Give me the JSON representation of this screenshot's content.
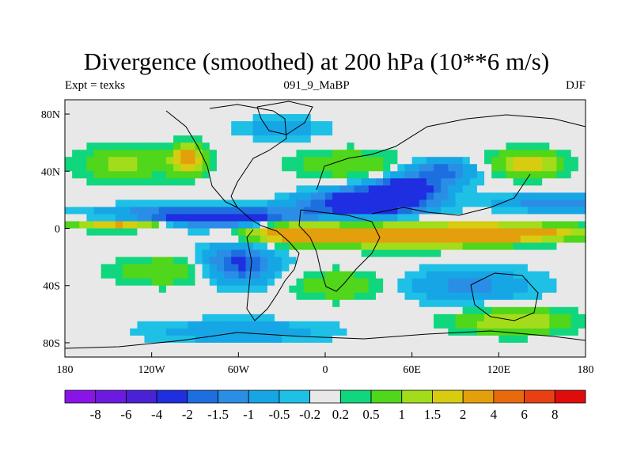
{
  "chart_data": {
    "type": "heatmap",
    "title": "Divergence (smoothed) at 200 hPa (10**6 m/s)",
    "left_subtitle": "Expt = texks",
    "center_subtitle": "091_9_MaBP",
    "right_subtitle": "DJF",
    "x_ticks": [
      {
        "value": -180,
        "label": "180"
      },
      {
        "value": -120,
        "label": "120W"
      },
      {
        "value": -60,
        "label": "60W"
      },
      {
        "value": 0,
        "label": "0"
      },
      {
        "value": 60,
        "label": "60E"
      },
      {
        "value": 120,
        "label": "120E"
      },
      {
        "value": 180,
        "label": "180"
      }
    ],
    "y_ticks": [
      {
        "value": 80,
        "label": "80N"
      },
      {
        "value": 40,
        "label": "40N"
      },
      {
        "value": 0,
        "label": "0"
      },
      {
        "value": -40,
        "label": "40S"
      },
      {
        "value": -80,
        "label": "80S"
      }
    ],
    "xlim": [
      -180,
      180
    ],
    "ylim": [
      -90,
      90
    ],
    "colorbar": {
      "levels": [
        "-8",
        "-6",
        "-4",
        "-2",
        "-1.5",
        "-1",
        "-0.5",
        "-0.2",
        "0.2",
        "0.5",
        "1",
        "1.5",
        "2",
        "4",
        "6",
        "8"
      ],
      "colors": [
        "#8a14e8",
        "#6d1ae0",
        "#4a22d6",
        "#1e2ee0",
        "#1d6fe0",
        "#2a8ee6",
        "#16a6e6",
        "#1ec0e6",
        "#e8e8e8",
        "#10d67e",
        "#50d61a",
        "#a3dc1a",
        "#d8cc10",
        "#e3a00c",
        "#e86a0c",
        "#e84012",
        "#e00c0c"
      ]
    },
    "features": [
      {
        "lon": -80,
        "lat": 8,
        "value": -3.0,
        "lon_scale": 70,
        "lat_scale": 7
      },
      {
        "lon": 30,
        "lat": 18,
        "value": -3.5,
        "lon_scale": 40,
        "lat_scale": 9
      },
      {
        "lon": 55,
        "lat": 28,
        "value": -3.0,
        "lon_scale": 25,
        "lat_scale": 7
      },
      {
        "lon": 80,
        "lat": 40,
        "value": -1.8,
        "lon_scale": 25,
        "lat_scale": 8
      },
      {
        "lon": 160,
        "lat": 18,
        "value": -1.5,
        "lon_scale": 40,
        "lat_scale": 6
      },
      {
        "lon": -140,
        "lat": 3,
        "value": 2.8,
        "lon_scale": 35,
        "lat_scale": 4
      },
      {
        "lon": -20,
        "lat": -3,
        "value": 3.2,
        "lon_scale": 35,
        "lat_scale": 7
      },
      {
        "lon": 60,
        "lat": -5,
        "value": 3.0,
        "lon_scale": 60,
        "lat_scale": 8
      },
      {
        "lon": 130,
        "lat": -3,
        "value": 2.5,
        "lon_scale": 50,
        "lat_scale": 6
      },
      {
        "lon": -140,
        "lat": 45,
        "value": 1.2,
        "lon_scale": 30,
        "lat_scale": 12
      },
      {
        "lon": -95,
        "lat": 48,
        "value": 2.5,
        "lon_scale": 12,
        "lat_scale": 10
      },
      {
        "lon": 15,
        "lat": 45,
        "value": 1.0,
        "lon_scale": 35,
        "lat_scale": 10
      },
      {
        "lon": 140,
        "lat": 45,
        "value": 1.8,
        "lon_scale": 25,
        "lat_scale": 9
      },
      {
        "lon": -60,
        "lat": -25,
        "value": -2.2,
        "lon_scale": 25,
        "lat_scale": 14
      },
      {
        "lon": -110,
        "lat": -30,
        "value": 1.0,
        "lon_scale": 35,
        "lat_scale": 10
      },
      {
        "lon": 10,
        "lat": -40,
        "value": 1.0,
        "lon_scale": 30,
        "lat_scale": 10
      },
      {
        "lon": 100,
        "lat": -40,
        "value": -1.2,
        "lon_scale": 45,
        "lat_scale": 12
      },
      {
        "lon": 130,
        "lat": -65,
        "value": 1.5,
        "lon_scale": 40,
        "lat_scale": 9
      },
      {
        "lon": -60,
        "lat": -72,
        "value": -1.0,
        "lon_scale": 60,
        "lat_scale": 8
      },
      {
        "lon": -30,
        "lat": 70,
        "value": -0.8,
        "lon_scale": 30,
        "lat_scale": 8
      }
    ]
  }
}
